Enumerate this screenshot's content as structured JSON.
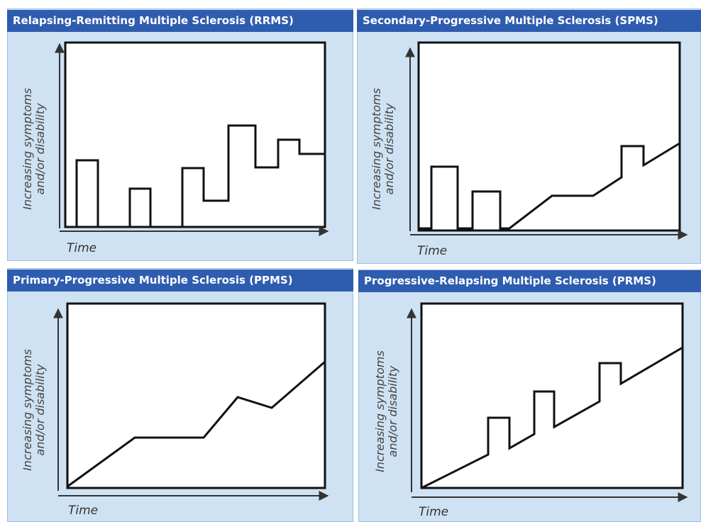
{
  "panels": [
    {
      "title": "Relapsing-Remitting Multiple Sclerosis (RRMS)",
      "y_label": [
        "Increasing symptoms",
        "and/or disability"
      ],
      "x_label": "Time"
    },
    {
      "title": "Secondary-Progressive Multiple Sclerosis (SPMS)",
      "y_label": [
        "Increasing symptoms",
        "and/or disability"
      ],
      "x_label": "Time"
    },
    {
      "title": "Primary-Progressive Multiple Sclerosis (PPMS)",
      "y_label": [
        "Increasing symptoms",
        "and/or disability"
      ],
      "x_label": "Time"
    },
    {
      "title": "Progressive-Relapsing Multiple Sclerosis (PRMS)",
      "y_label": [
        "Increasing symptoms",
        "and/or disability"
      ],
      "x_label": "Time"
    }
  ]
}
